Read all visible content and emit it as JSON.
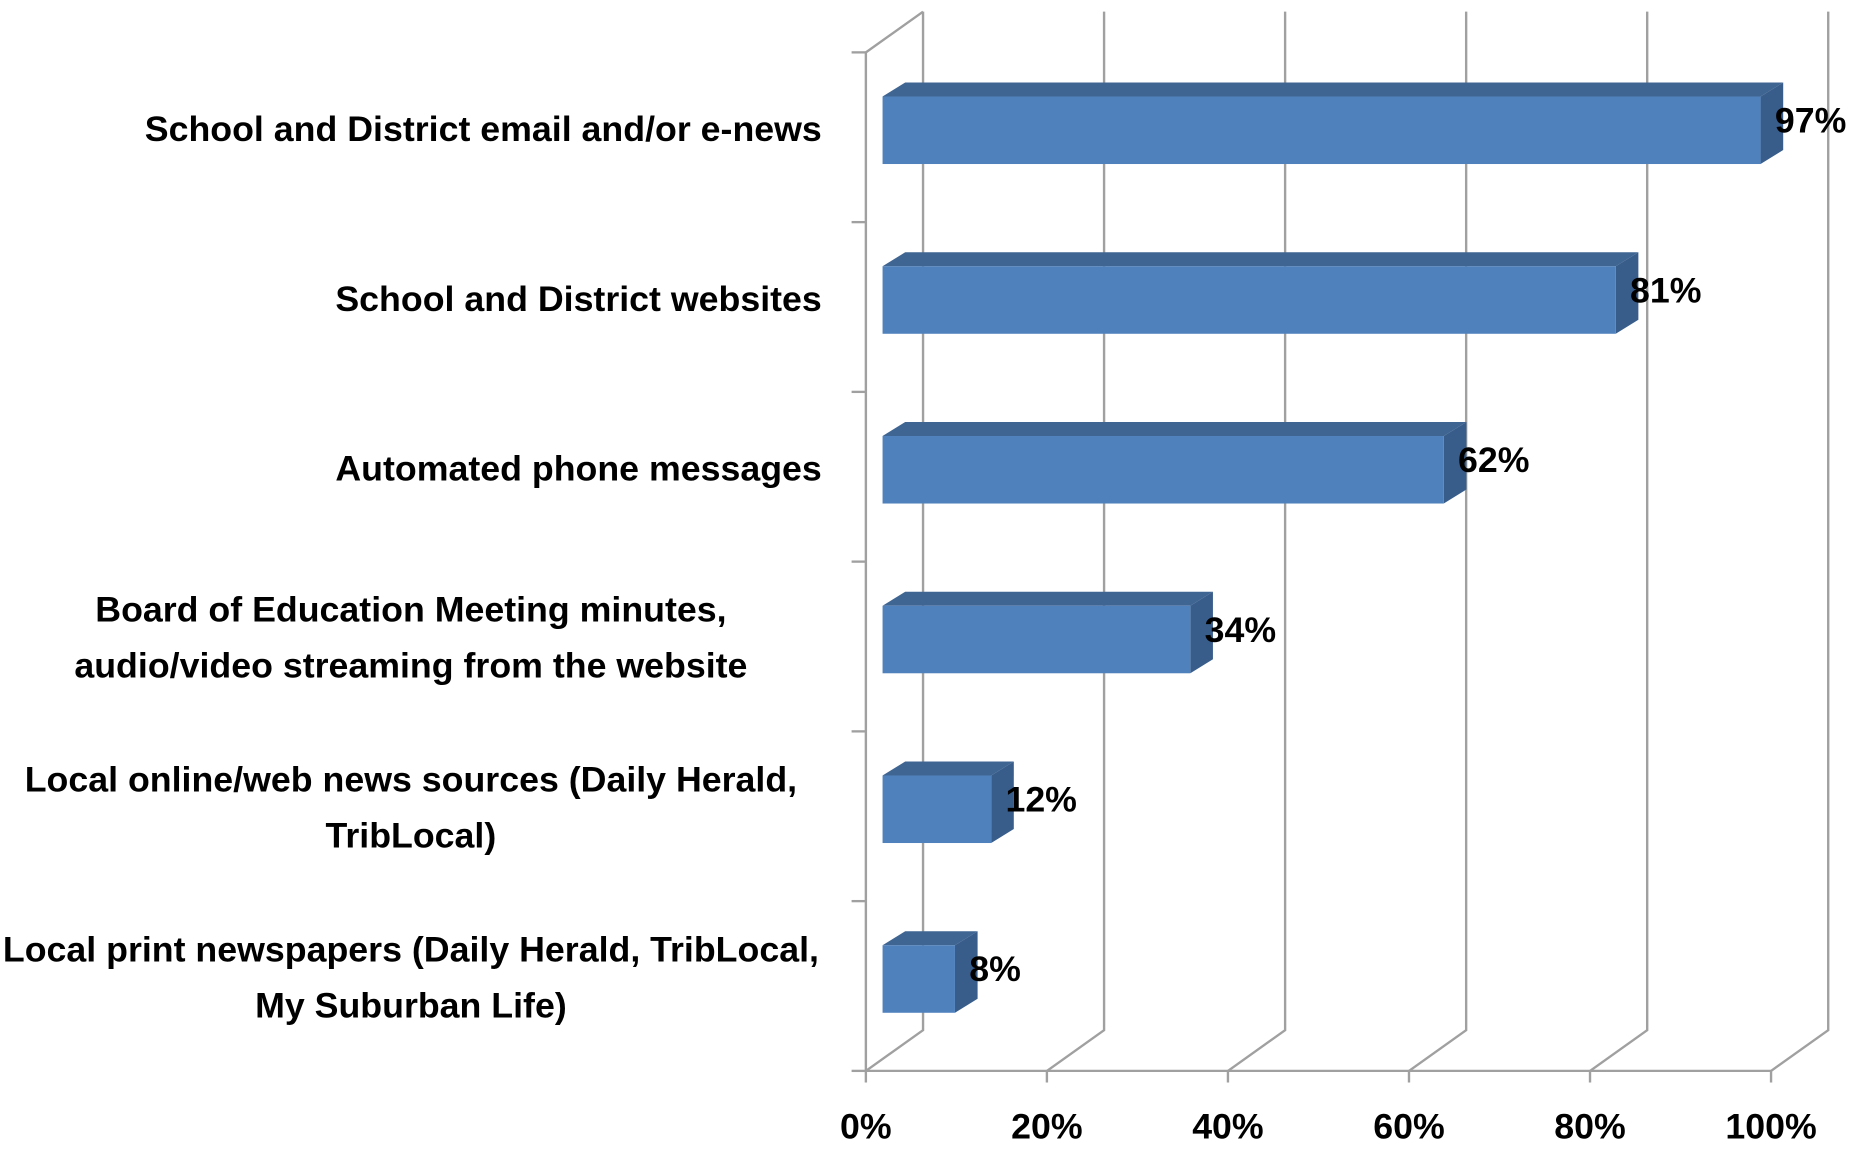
{
  "chart_data": {
    "type": "bar3d_horizontal",
    "categories": [
      "School and District email and/or e-news",
      "School and District websites",
      "Automated phone messages",
      "Board of Education Meeting minutes, audio/video streaming from the website",
      "Local online/web news sources (Daily Herald, TribLocal)",
      "Local print newspapers (Daily Herald, TribLocal, My Suburban Life)"
    ],
    "values": [
      97,
      81,
      62,
      34,
      12,
      8
    ],
    "value_labels": [
      "97%",
      "81%",
      "62%",
      "34%",
      "12%",
      "8%"
    ],
    "color": "#4f81bd",
    "xlim": [
      0,
      100
    ],
    "xticks": [
      {
        "value": 0,
        "label": "0%"
      },
      {
        "value": 20,
        "label": "20%"
      },
      {
        "value": 40,
        "label": "40%"
      },
      {
        "value": 60,
        "label": "60%"
      },
      {
        "value": 80,
        "label": "80%"
      },
      {
        "value": 100,
        "label": "100%"
      }
    ],
    "grid": true
  }
}
